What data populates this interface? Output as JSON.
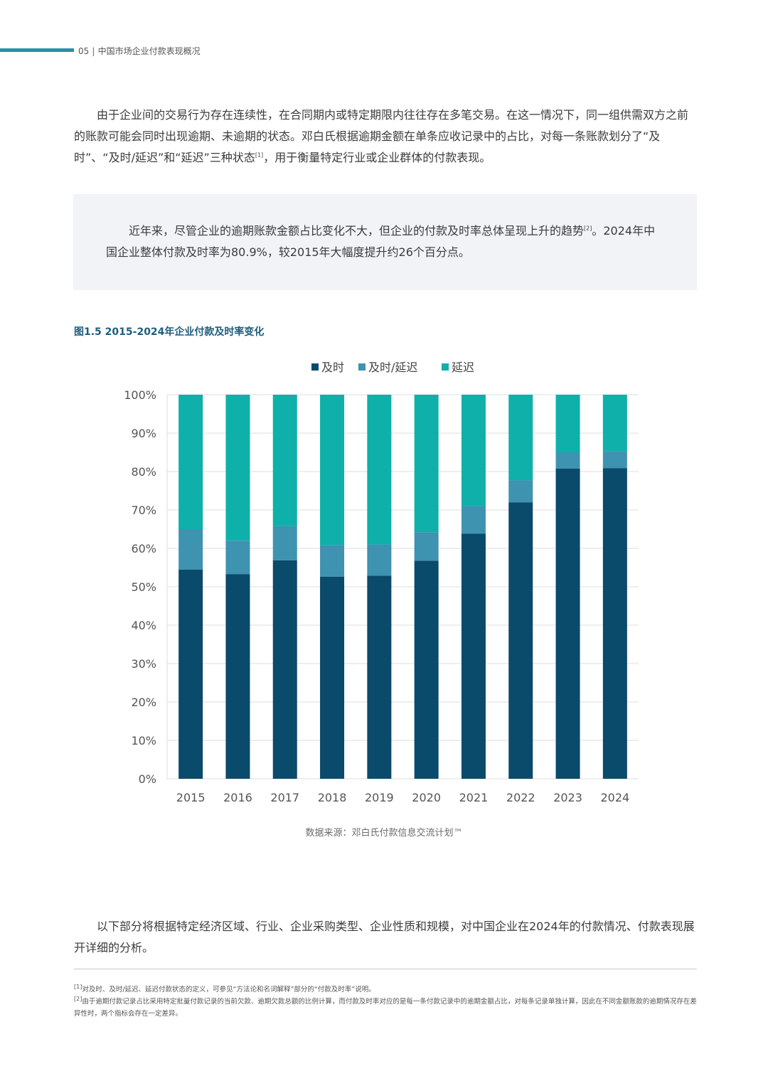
{
  "header": {
    "page_number": "05",
    "title": "中国市场企业付款表现概况"
  },
  "intro": {
    "before_ref": "由于企业间的交易行为存在连续性，在合同期内或特定期限内往往存在多笔交易。在这一情况下，同一组供需双方之前的账款可能会同时出现逾期、未逾期的状态。邓白氏根据逾期金额在单条应收记录中的占比，对每一条账款划分了“及时”、“及时/延迟”和“延迟”三种状态",
    "ref": "[1]",
    "after_ref": "，用于衡量特定行业或企业群体的付款表现。"
  },
  "highlight": {
    "before_ref": "近年来，尽管企业的逾期账款金额占比变化不大，但企业的付款及时率总体呈现上升的趋势",
    "ref": "[2]",
    "after_ref": "。2024年中国企业整体付款及时率为80.9%，较2015年大幅度提升约26个百分点。"
  },
  "figure": {
    "title": "图1.5 2015-2024年企业付款及时率变化",
    "source": "数据来源：邓白氏付款信息交流计划™"
  },
  "chart_data": {
    "type": "bar",
    "stacked": true,
    "categories": [
      "2015",
      "2016",
      "2017",
      "2018",
      "2019",
      "2020",
      "2021",
      "2022",
      "2023",
      "2024"
    ],
    "series": [
      {
        "name": "及时",
        "color": "#0a4a6b",
        "values": [
          54.5,
          53.3,
          56.9,
          52.6,
          52.9,
          56.8,
          63.8,
          72.0,
          80.8,
          80.9
        ]
      },
      {
        "name": "及时/延迟",
        "color": "#3e93b0",
        "values": [
          10.5,
          8.7,
          8.9,
          8.3,
          8.1,
          7.4,
          7.2,
          5.7,
          4.2,
          4.4
        ]
      },
      {
        "name": "延迟",
        "color": "#0fb0aa",
        "values": [
          35.0,
          38.0,
          34.2,
          39.1,
          39.0,
          35.8,
          29.0,
          22.3,
          15.0,
          14.7
        ]
      }
    ],
    "ylim": [
      0,
      100
    ],
    "yticks": [
      "0%",
      "10%",
      "20%",
      "30%",
      "40%",
      "50%",
      "60%",
      "70%",
      "80%",
      "90%",
      "100%"
    ],
    "grid": true,
    "legend_position": "top"
  },
  "closing": "以下部分将根据特定经济区域、行业、企业采购类型、企业性质和规模，对中国企业在2024年的付款情况、付款表现展开详细的分析。",
  "footnotes": [
    {
      "ref": "[1]",
      "text": "对及时、及时/延迟、延迟付款状态的定义，可参见“方法论和名词解释”部分的“付款及时率”说明。"
    },
    {
      "ref": "[2]",
      "text": "由于逾期付款记录占比采用特定批量付款记录的当前欠款、逾期欠款总额的比例计算，而付款及时率对应的是每一条付款记录中的逾期金额占比，对每条记录单独计算，因此在不同金额账款的逾期情况存在差异性时，两个指标会存在一定差异。"
    }
  ]
}
